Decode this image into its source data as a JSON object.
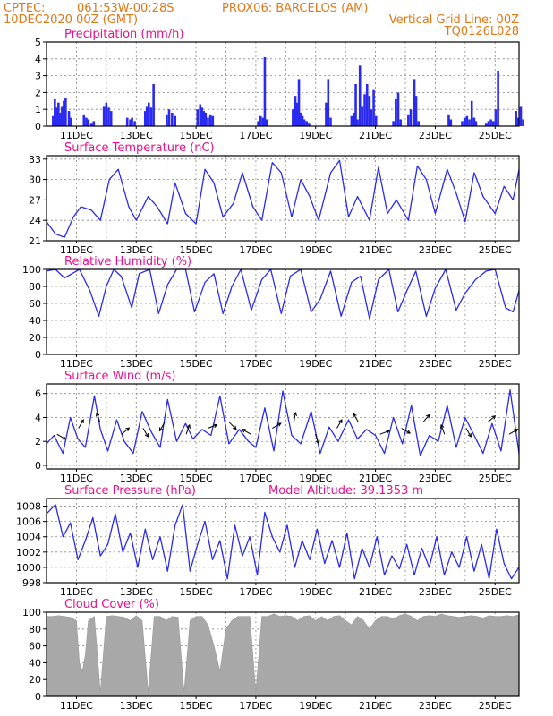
{
  "header": {
    "source": "CPTEC:",
    "coords": "061:53W-00:28S",
    "station": "PROX06: BARCELOS (AM)",
    "datetime": "10DEC2020 00Z (GMT)",
    "grid_note": "Vertical Grid Line: 00Z",
    "run_id": "TQ0126L028"
  },
  "colors": {
    "header": "#e07818",
    "title": "#e8108c",
    "series": "#2a2af0",
    "cloud": "#a8a8a8",
    "arrow": "#000000"
  },
  "x_tick_labels": [
    "11DEC",
    "13DEC",
    "15DEC",
    "17DEC",
    "19DEC",
    "21DEC",
    "23DEC",
    "25DEC"
  ],
  "chart_data": [
    {
      "type": "bar",
      "title": "Precipitation (mm/h)",
      "ylim": [
        0,
        5
      ],
      "y_ticks": [
        0,
        1,
        2,
        3,
        4,
        5
      ],
      "x": [
        0.22,
        0.28,
        0.34,
        0.4,
        0.46,
        0.52,
        0.58,
        0.64,
        0.75,
        0.82,
        1.25,
        1.33,
        1.4,
        1.5,
        1.58,
        1.92,
        2.0,
        2.08,
        2.16,
        2.7,
        2.8,
        2.86,
        2.95,
        3.3,
        3.36,
        3.42,
        3.5,
        3.58,
        4.02,
        4.1,
        4.2,
        4.3,
        5.05,
        5.14,
        5.2,
        5.26,
        5.32,
        5.4,
        5.48,
        5.56,
        7.08,
        7.16,
        7.24,
        7.3,
        7.36,
        8.24,
        8.32,
        8.38,
        8.44,
        8.5,
        8.56,
        8.62,
        8.7,
        8.78,
        9.35,
        9.42,
        9.5,
        10.2,
        10.28,
        10.34,
        10.4,
        10.48,
        10.56,
        10.64,
        10.72,
        10.8,
        10.86,
        10.94,
        11.02,
        11.6,
        11.68,
        11.76,
        11.84,
        12.1,
        12.18,
        12.3,
        12.36,
        12.44,
        13.45,
        13.52,
        13.9,
        13.98,
        14.06,
        14.14,
        14.22,
        14.3,
        14.36,
        14.7,
        14.78,
        14.86,
        14.94,
        15.02,
        15.1,
        15.7,
        15.78,
        15.86,
        15.94
      ],
      "values": [
        0.6,
        1.6,
        1.1,
        1.4,
        0.8,
        1.2,
        1.5,
        1.7,
        0.9,
        0.5,
        0.7,
        0.5,
        0.4,
        0.2,
        0.3,
        1.2,
        1.4,
        1.1,
        0.9,
        0.5,
        0.4,
        0.5,
        0.3,
        0.9,
        1.2,
        1.4,
        1.1,
        2.5,
        0.7,
        1.0,
        0.8,
        0.6,
        1.0,
        1.3,
        1.1,
        0.9,
        0.8,
        0.5,
        0.7,
        0.6,
        0.3,
        0.6,
        0.5,
        4.1,
        0.4,
        1.0,
        1.8,
        1.4,
        2.8,
        0.8,
        0.6,
        0.4,
        0.3,
        0.2,
        1.4,
        2.8,
        0.5,
        0.6,
        0.8,
        2.5,
        0.4,
        3.6,
        1.2,
        1.9,
        2.5,
        1.8,
        1.0,
        2.2,
        0.6,
        0.3,
        1.6,
        2.0,
        0.4,
        0.7,
        1.0,
        2.8,
        1.8,
        0.3,
        0.7,
        0.4,
        0.3,
        0.5,
        0.6,
        0.4,
        1.5,
        0.5,
        0.3,
        0.2,
        0.3,
        0.4,
        0.3,
        1.0,
        3.3,
        0.9,
        0.5,
        1.2,
        0.4
      ]
    },
    {
      "type": "line",
      "title": "Surface Temperature (nC)",
      "ylim": [
        21,
        33.5
      ],
      "y_ticks": [
        21,
        24,
        27,
        30,
        33
      ],
      "x": [
        0.0,
        0.3,
        0.6,
        0.9,
        1.15,
        1.5,
        1.8,
        2.1,
        2.4,
        2.75,
        3.0,
        3.4,
        3.7,
        4.05,
        4.3,
        4.65,
        5.0,
        5.3,
        5.6,
        5.9,
        6.25,
        6.55,
        6.9,
        7.2,
        7.55,
        7.85,
        8.2,
        8.5,
        8.8,
        9.1,
        9.5,
        9.8,
        10.1,
        10.4,
        10.8,
        11.1,
        11.4,
        11.7,
        12.1,
        12.4,
        12.7,
        13.0,
        13.4,
        13.7,
        14.0,
        14.3,
        14.6,
        15.0,
        15.3,
        15.6,
        15.8
      ],
      "values": [
        23.8,
        22.0,
        21.5,
        24.5,
        26.0,
        25.5,
        24.0,
        30.0,
        31.5,
        26.0,
        24.0,
        27.5,
        26.0,
        23.5,
        29.5,
        25.0,
        23.5,
        31.5,
        29.5,
        24.5,
        26.5,
        31.0,
        26.0,
        24.0,
        32.5,
        31.0,
        24.5,
        30.0,
        27.5,
        24.0,
        31.0,
        32.8,
        24.5,
        27.5,
        24.0,
        31.8,
        25.0,
        27.0,
        24.0,
        32.0,
        30.0,
        25.0,
        31.5,
        28.0,
        23.8,
        31.0,
        27.5,
        25.0,
        29.0,
        27.0,
        31.5
      ]
    },
    {
      "type": "line",
      "title": "Relative Humidity (%)",
      "ylim": [
        0,
        100
      ],
      "y_ticks": [
        0,
        20,
        40,
        60,
        80,
        100
      ],
      "x": [
        0.0,
        0.3,
        0.6,
        0.85,
        1.1,
        1.45,
        1.75,
        2.0,
        2.25,
        2.5,
        2.85,
        3.1,
        3.45,
        3.75,
        4.05,
        4.35,
        4.65,
        4.95,
        5.3,
        5.6,
        5.9,
        6.2,
        6.5,
        6.85,
        7.2,
        7.5,
        7.85,
        8.15,
        8.5,
        8.85,
        9.15,
        9.5,
        9.85,
        10.2,
        10.5,
        10.8,
        11.1,
        11.45,
        11.75,
        12.05,
        12.35,
        12.7,
        13.0,
        13.35,
        13.7,
        14.0,
        14.35,
        14.7,
        15.0,
        15.35,
        15.6,
        15.8
      ],
      "values": [
        98,
        100,
        90,
        95,
        100,
        75,
        45,
        80,
        100,
        92,
        55,
        95,
        100,
        48,
        82,
        100,
        100,
        50,
        85,
        95,
        48,
        80,
        100,
        52,
        88,
        100,
        48,
        92,
        100,
        50,
        65,
        98,
        45,
        85,
        92,
        42,
        88,
        100,
        50,
        75,
        98,
        45,
        78,
        100,
        52,
        72,
        88,
        98,
        100,
        55,
        50,
        75
      ]
    },
    {
      "type": "line",
      "title": "Surface Wind (m/s)",
      "ylim": [
        -0.3,
        6.8
      ],
      "y_ticks": [
        0,
        2,
        4,
        6
      ],
      "x": [
        0.0,
        0.25,
        0.55,
        0.8,
        1.05,
        1.3,
        1.6,
        1.8,
        2.05,
        2.35,
        2.6,
        2.9,
        3.2,
        3.5,
        3.8,
        4.05,
        4.35,
        4.65,
        4.9,
        5.2,
        5.5,
        5.8,
        6.1,
        6.45,
        6.75,
        7.0,
        7.3,
        7.6,
        7.9,
        8.2,
        8.5,
        8.85,
        9.15,
        9.45,
        9.75,
        10.1,
        10.4,
        10.7,
        11.0,
        11.3,
        11.6,
        11.9,
        12.2,
        12.5,
        12.8,
        13.1,
        13.4,
        13.7,
        14.0,
        14.3,
        14.6,
        14.9,
        15.2,
        15.5,
        15.8
      ],
      "values": [
        1.8,
        2.5,
        1.0,
        4.0,
        2.2,
        1.5,
        5.8,
        3.0,
        1.2,
        3.8,
        2.0,
        1.0,
        4.5,
        2.8,
        1.5,
        5.5,
        2.0,
        3.5,
        2.2,
        3.0,
        2.5,
        5.8,
        1.8,
        3.0,
        2.0,
        1.5,
        4.8,
        1.2,
        6.2,
        2.5,
        1.8,
        4.5,
        1.0,
        3.2,
        2.0,
        3.8,
        2.2,
        3.0,
        2.5,
        1.0,
        4.0,
        1.8,
        5.0,
        0.8,
        2.5,
        2.0,
        5.0,
        1.5,
        4.0,
        2.5,
        1.0,
        3.5,
        1.2,
        6.3,
        1.0
      ]
    },
    {
      "type": "line",
      "title": "Surface Pressure (hPa)",
      "annotation": "Model Altitude: 39.1353 m",
      "ylim": [
        998,
        1009
      ],
      "y_ticks": [
        998,
        1000,
        1002,
        1004,
        1006,
        1008
      ],
      "x": [
        0.0,
        0.3,
        0.55,
        0.8,
        1.05,
        1.3,
        1.55,
        1.8,
        2.05,
        2.3,
        2.55,
        2.8,
        3.05,
        3.3,
        3.55,
        3.8,
        4.05,
        4.3,
        4.55,
        4.8,
        5.05,
        5.3,
        5.55,
        5.8,
        6.05,
        6.3,
        6.55,
        6.8,
        7.05,
        7.3,
        7.55,
        7.8,
        8.05,
        8.3,
        8.55,
        8.8,
        9.05,
        9.3,
        9.55,
        9.8,
        10.05,
        10.3,
        10.55,
        10.8,
        11.05,
        11.3,
        11.55,
        11.8,
        12.05,
        12.3,
        12.55,
        12.8,
        13.05,
        13.3,
        13.55,
        13.8,
        14.05,
        14.3,
        14.55,
        14.8,
        15.05,
        15.3,
        15.55,
        15.8
      ],
      "values": [
        1007.0,
        1008.2,
        1004.0,
        1005.8,
        1001.0,
        1003.5,
        1006.5,
        1001.5,
        1003.0,
        1007.0,
        1002.0,
        1004.5,
        1000.0,
        1005.0,
        1001.0,
        1004.0,
        999.5,
        1005.5,
        1008.2,
        999.5,
        1003.0,
        1006.0,
        1001.0,
        1003.5,
        998.5,
        1005.5,
        1001.5,
        1004.0,
        999.0,
        1007.2,
        1004.0,
        1002.0,
        1005.5,
        1000.0,
        1003.5,
        1001.0,
        1005.0,
        1000.5,
        1003.5,
        1000.0,
        1004.5,
        998.5,
        1002.5,
        1000.0,
        1004.0,
        999.0,
        1001.5,
        999.8,
        1003.0,
        999.0,
        1002.5,
        1000.0,
        1004.0,
        999.0,
        1002.0,
        1000.0,
        1004.0,
        999.5,
        1003.0,
        998.5,
        1005.0,
        1000.5,
        998.5,
        1000.0
      ]
    },
    {
      "type": "area",
      "title": "Cloud Cover (%)",
      "ylim": [
        0,
        100
      ],
      "y_ticks": [
        0,
        20,
        40,
        60,
        80,
        100
      ],
      "x": [
        0.0,
        0.2,
        0.4,
        0.6,
        0.8,
        1.0,
        1.1,
        1.2,
        1.3,
        1.4,
        1.6,
        1.8,
        2.0,
        2.2,
        2.4,
        2.6,
        2.8,
        3.0,
        3.2,
        3.4,
        3.6,
        3.8,
        4.0,
        4.2,
        4.4,
        4.6,
        4.8,
        5.0,
        5.2,
        5.4,
        5.6,
        5.8,
        6.0,
        6.2,
        6.4,
        6.6,
        6.8,
        7.0,
        7.2,
        7.4,
        7.6,
        7.8,
        8.0,
        8.2,
        8.4,
        8.6,
        8.8,
        9.0,
        9.2,
        9.4,
        9.6,
        9.8,
        10.0,
        10.2,
        10.4,
        10.6,
        10.8,
        11.0,
        11.2,
        11.4,
        11.6,
        11.8,
        12.0,
        12.2,
        12.4,
        12.6,
        12.8,
        13.0,
        13.2,
        13.4,
        13.6,
        13.8,
        14.0,
        14.2,
        14.4,
        14.6,
        14.8,
        15.0,
        15.2,
        15.4,
        15.6,
        15.8
      ],
      "values": [
        95,
        95,
        96,
        95,
        94,
        90,
        40,
        30,
        50,
        90,
        95,
        5,
        95,
        96,
        95,
        94,
        90,
        96,
        90,
        5,
        95,
        95,
        90,
        95,
        94,
        5,
        90,
        95,
        95,
        85,
        60,
        30,
        80,
        90,
        95,
        95,
        95,
        5,
        95,
        95,
        98,
        95,
        96,
        95,
        90,
        95,
        96,
        90,
        95,
        90,
        95,
        96,
        90,
        85,
        95,
        90,
        80,
        90,
        95,
        95,
        92,
        96,
        98,
        95,
        90,
        95,
        96,
        95,
        98,
        96,
        95,
        94,
        95,
        96,
        95,
        93,
        96,
        95,
        95,
        96,
        95,
        97
      ]
    }
  ]
}
